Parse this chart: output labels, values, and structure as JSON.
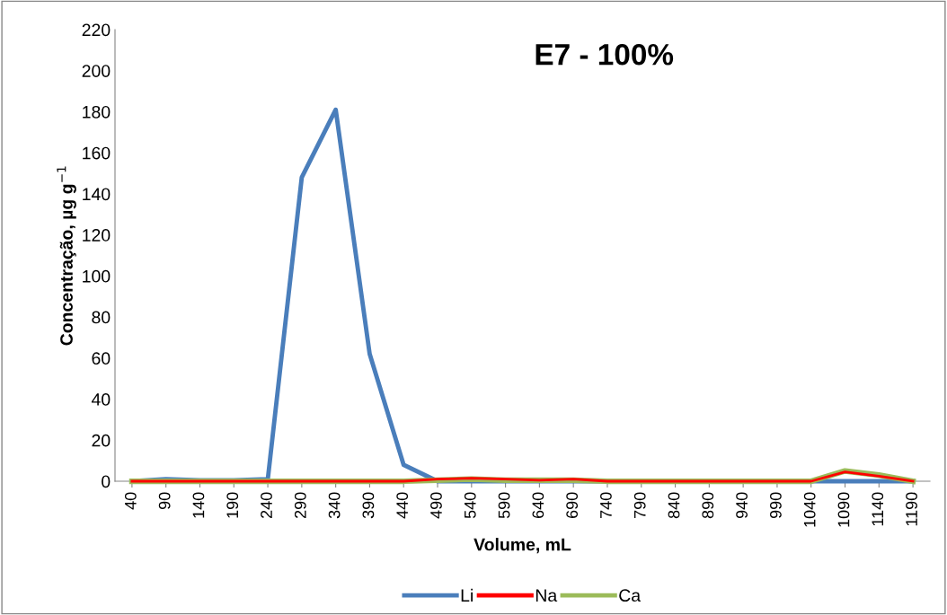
{
  "chart_data": {
    "type": "line",
    "title": "E7 - 100%",
    "xlabel": "Volume, mL",
    "ylabel": "Concentração, µg g$^{−1}$",
    "categories": [
      "40",
      "90",
      "140",
      "190",
      "240",
      "290",
      "340",
      "390",
      "440",
      "490",
      "540",
      "590",
      "640",
      "690",
      "740",
      "790",
      "840",
      "890",
      "940",
      "990",
      "1040",
      "1090",
      "1140",
      "1190"
    ],
    "series": [
      {
        "name": "Li",
        "color": "#4a7ebb",
        "values": [
          0,
          1,
          0.5,
          0.5,
          1,
          148,
          181,
          62,
          8,
          0,
          0,
          0,
          0,
          0,
          0,
          0,
          0,
          0,
          0,
          0,
          0,
          0,
          0,
          0
        ]
      },
      {
        "name": "Na",
        "color": "#ff0000",
        "values": [
          0,
          0,
          0,
          0,
          0,
          0,
          0,
          0,
          0,
          1,
          1.5,
          1,
          0.5,
          1,
          0,
          0,
          0,
          0,
          0,
          0,
          0,
          4.5,
          2.5,
          0
        ]
      },
      {
        "name": "Ca",
        "color": "#9bbb59",
        "values": [
          0,
          0,
          0,
          0,
          0,
          0,
          0,
          0,
          0,
          0.5,
          1,
          0.5,
          0.5,
          0.5,
          0,
          0,
          0,
          0,
          0,
          0,
          0,
          5,
          3,
          0
        ]
      }
    ],
    "ylim": [
      0,
      220
    ],
    "yticks": [
      0,
      20,
      40,
      60,
      80,
      100,
      120,
      140,
      160,
      180,
      200,
      220
    ],
    "grid": false,
    "legend": "bottom",
    "marker": "none",
    "line_style": "solid"
  }
}
